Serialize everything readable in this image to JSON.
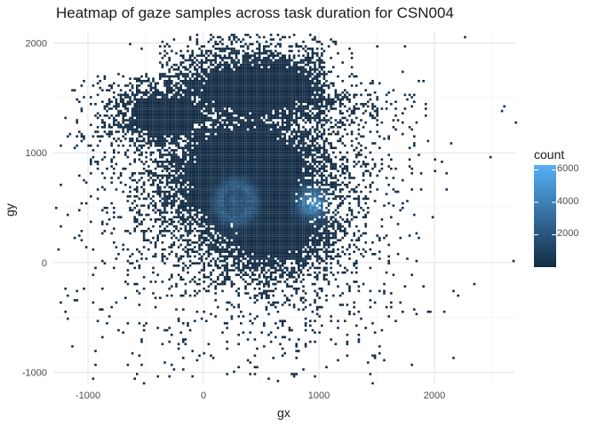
{
  "chart_data": {
    "type": "heatmap",
    "title": "Heatmap of gaze samples across task duration for CSN004",
    "xlabel": "gx",
    "ylabel": "gy",
    "xlim": [
      -1300,
      2700
    ],
    "ylim": [
      -1100,
      2100
    ],
    "x_ticks": [
      -1000,
      0,
      1000,
      2000
    ],
    "y_ticks": [
      -1000,
      0,
      1000,
      2000
    ],
    "grid": true,
    "legend": {
      "title": "count",
      "placement": "right",
      "range": [
        0,
        6300
      ],
      "ticks": [
        2000,
        4000,
        6000
      ],
      "low_color": "#132B43",
      "high_color": "#56B1F7"
    },
    "regions": [
      {
        "name": "dense band upper-left",
        "x_range": [
          -900,
          1250
        ],
        "y_range": [
          -100,
          1900
        ],
        "count": "low"
      },
      {
        "name": "hotspot left",
        "center": [
          270,
          560
        ],
        "count": 3500
      },
      {
        "name": "hotspot right",
        "center": [
          930,
          550
        ],
        "count": 5500
      }
    ]
  }
}
